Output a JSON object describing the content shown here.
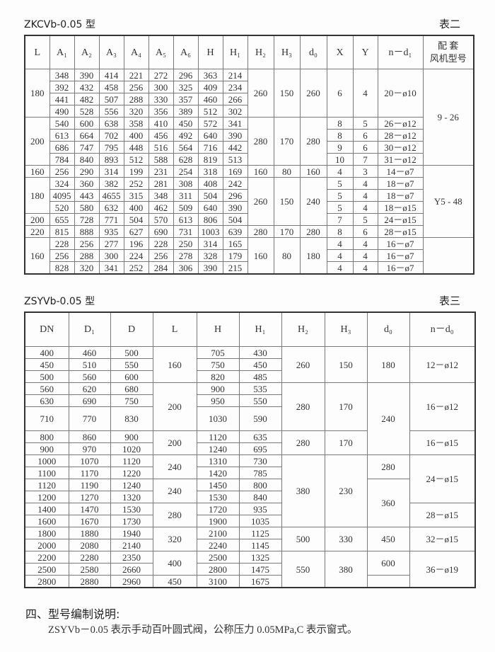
{
  "table2_section": {
    "title": "ZKCVb-0.05 型",
    "table_no": "表二",
    "headers": [
      "L",
      "A₁",
      "A₂",
      "A₃",
      "A₄",
      "A₅",
      "A₆",
      "H",
      "H₁",
      "H₂",
      "H₃",
      "d₀",
      "X",
      "Y",
      "n－d₁"
    ],
    "fan_header": [
      "配 套",
      "风机型号"
    ],
    "L": [
      "180",
      "200",
      "160",
      "180",
      "200",
      "220",
      "160"
    ],
    "rows": [
      [
        "348",
        "390",
        "414",
        "221",
        "272",
        "296",
        "363",
        "214"
      ],
      [
        "392",
        "432",
        "458",
        "256",
        "300",
        "325",
        "409",
        "234"
      ],
      [
        "441",
        "482",
        "507",
        "288",
        "330",
        "357",
        "460",
        "266"
      ],
      [
        "490",
        "528",
        "556",
        "320",
        "356",
        "389",
        "512",
        "302"
      ],
      [
        "540",
        "600",
        "638",
        "358",
        "410",
        "450",
        "572",
        "341"
      ],
      [
        "613",
        "664",
        "702",
        "400",
        "456",
        "492",
        "640",
        "390"
      ],
      [
        "686",
        "747",
        "795",
        "448",
        "516",
        "564",
        "716",
        "442"
      ],
      [
        "784",
        "840",
        "893",
        "512",
        "588",
        "628",
        "819",
        "513"
      ],
      [
        "256",
        "290",
        "314",
        "199",
        "231",
        "254",
        "318",
        "169"
      ],
      [
        "324",
        "360",
        "382",
        "252",
        "281",
        "308",
        "408",
        "242"
      ],
      [
        "4095",
        "443",
        "4655",
        "315",
        "348",
        "311",
        "504",
        "296"
      ],
      [
        "520",
        "580",
        "632",
        "400",
        "462",
        "509",
        "640",
        "390"
      ],
      [
        "655",
        "728",
        "771",
        "504",
        "570",
        "613",
        "806",
        "504"
      ],
      [
        "815",
        "888",
        "935",
        "627",
        "690",
        "731",
        "1003",
        "639"
      ],
      [
        "228",
        "256",
        "277",
        "196",
        "228",
        "250",
        "314",
        "165"
      ],
      [
        "256",
        "288",
        "300",
        "224",
        "256",
        "278",
        "328",
        "179"
      ],
      [
        "828",
        "320",
        "341",
        "252",
        "284",
        "306",
        "390",
        "215"
      ]
    ],
    "H2H3d0": [
      [
        "260",
        "150",
        "260"
      ],
      [
        "280",
        "170",
        "280"
      ],
      [
        "160",
        "80",
        "160"
      ],
      [
        "260",
        "150",
        "240"
      ],
      [
        "280",
        "170",
        "280"
      ],
      [
        "160",
        "80",
        "180"
      ]
    ],
    "XYn": [
      [
        "6",
        "4",
        "20－ø10"
      ],
      [
        "8",
        "5",
        "26－ø12"
      ],
      [
        "8",
        "6",
        "28－ø12"
      ],
      [
        "9",
        "6",
        "30－ø12"
      ],
      [
        "10",
        "7",
        "31－ø12"
      ],
      [
        "4",
        "3",
        "14－ø7"
      ],
      [
        "5",
        "4",
        "18－ø7"
      ],
      [
        "5",
        "4",
        "18－ø7"
      ],
      [
        "5",
        "4",
        "18－ø15"
      ],
      [
        "7",
        "5",
        "24－ø15"
      ],
      [
        "8",
        "6",
        "28－ø15"
      ],
      [
        "4",
        "4",
        "16－ø7"
      ],
      [
        "4",
        "4",
        "16－ø7"
      ],
      [
        "4",
        "4",
        "16－ø7"
      ]
    ],
    "fan": [
      "9 - 26",
      "Y5 - 48",
      ""
    ]
  },
  "table3_section": {
    "title": "ZSYVb-0.05 型",
    "table_no": "表三",
    "headers": [
      "DN",
      "D₁",
      "D",
      "L",
      "H",
      "H₁",
      "H₂",
      "H₃",
      "d₀",
      "n－d₀"
    ],
    "DN_D1_D": [
      [
        "400",
        "460",
        "500"
      ],
      [
        "450",
        "510",
        "550"
      ],
      [
        "500",
        "560",
        "600"
      ],
      [
        "560",
        "620",
        "680"
      ],
      [
        "630",
        "690",
        "750"
      ],
      [
        "710",
        "770",
        "830"
      ],
      [
        "800",
        "860",
        "900"
      ],
      [
        "900",
        "970",
        "1020"
      ],
      [
        "1000",
        "1070",
        "1120"
      ],
      [
        "1100",
        "1170",
        "1220"
      ],
      [
        "1120",
        "1190",
        "1240"
      ],
      [
        "1200",
        "1270",
        "1320"
      ],
      [
        "1400",
        "1470",
        "1530"
      ],
      [
        "1600",
        "1670",
        "1730"
      ],
      [
        "1800",
        "1880",
        "1940"
      ],
      [
        "2000",
        "2080",
        "2140"
      ],
      [
        "2200",
        "2280",
        "2350"
      ],
      [
        "2500",
        "2580",
        "2660"
      ],
      [
        "2800",
        "2880",
        "2960"
      ]
    ],
    "L": [
      "160",
      "200",
      "200",
      "240",
      "240",
      "280",
      "320",
      "400",
      "450"
    ],
    "H_H1": [
      [
        "705",
        "430"
      ],
      [
        "750",
        "450"
      ],
      [
        "820",
        "485"
      ],
      [
        "900",
        "535"
      ],
      [
        "950",
        "550"
      ],
      [
        "1030",
        "590"
      ],
      [
        "1120",
        "635"
      ],
      [
        "1240",
        "695"
      ],
      [
        "1310",
        "730"
      ],
      [
        "1420",
        "785"
      ],
      [
        "1450",
        "800"
      ],
      [
        "1530",
        "840"
      ],
      [
        "1720",
        "935"
      ],
      [
        "1900",
        "1035"
      ],
      [
        "2100",
        "1125"
      ],
      [
        "2240",
        "1145"
      ],
      [
        "2500",
        "1325"
      ],
      [
        "2800",
        "1475"
      ],
      [
        "3100",
        "1675"
      ]
    ],
    "H2H3": [
      [
        "260",
        "150"
      ],
      [
        "280",
        "170"
      ],
      [
        "280",
        "170"
      ],
      [
        "380",
        "230"
      ],
      [
        "500",
        "330"
      ],
      [
        "550",
        "380"
      ]
    ],
    "d0": [
      "180",
      "240",
      "280",
      "360",
      "450",
      "600",
      ""
    ],
    "n_d0": [
      "12－ø12",
      "16－ø12",
      "16－ø15",
      "24－ø15",
      "28－ø15",
      "32－ø15",
      "36－ø19"
    ]
  },
  "section4": {
    "heading": "四、型号编制说明:",
    "text": "ZSYVb－0.05 表示手动百叶圆式阀，公称压力 0.05MPa,C 表示窗式。"
  }
}
